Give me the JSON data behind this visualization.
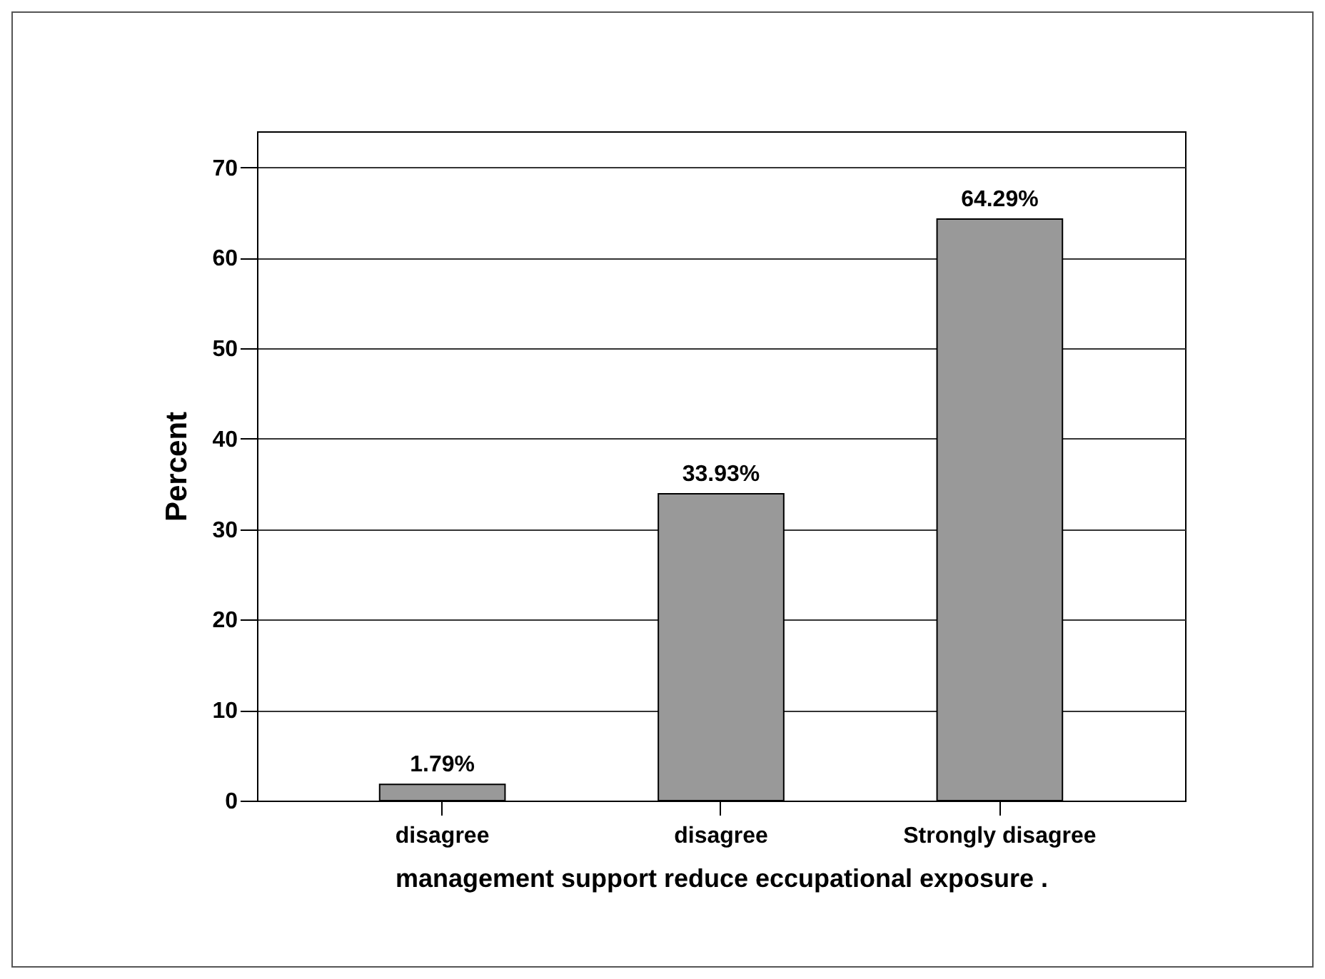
{
  "chart_data": {
    "type": "bar",
    "categories": [
      "disagree",
      "disagree",
      "Strongly disagree"
    ],
    "values": [
      1.79,
      33.93,
      64.29
    ],
    "value_labels": [
      "1.79%",
      "33.93%",
      "64.29%"
    ],
    "color": "#999999",
    "xlabel": "management support  reduce eccupational exposure .",
    "ylabel": "Percent",
    "ylim": [
      0,
      74
    ],
    "yticks": [
      0,
      10,
      20,
      30,
      40,
      50,
      60,
      70
    ],
    "grid": "y"
  }
}
